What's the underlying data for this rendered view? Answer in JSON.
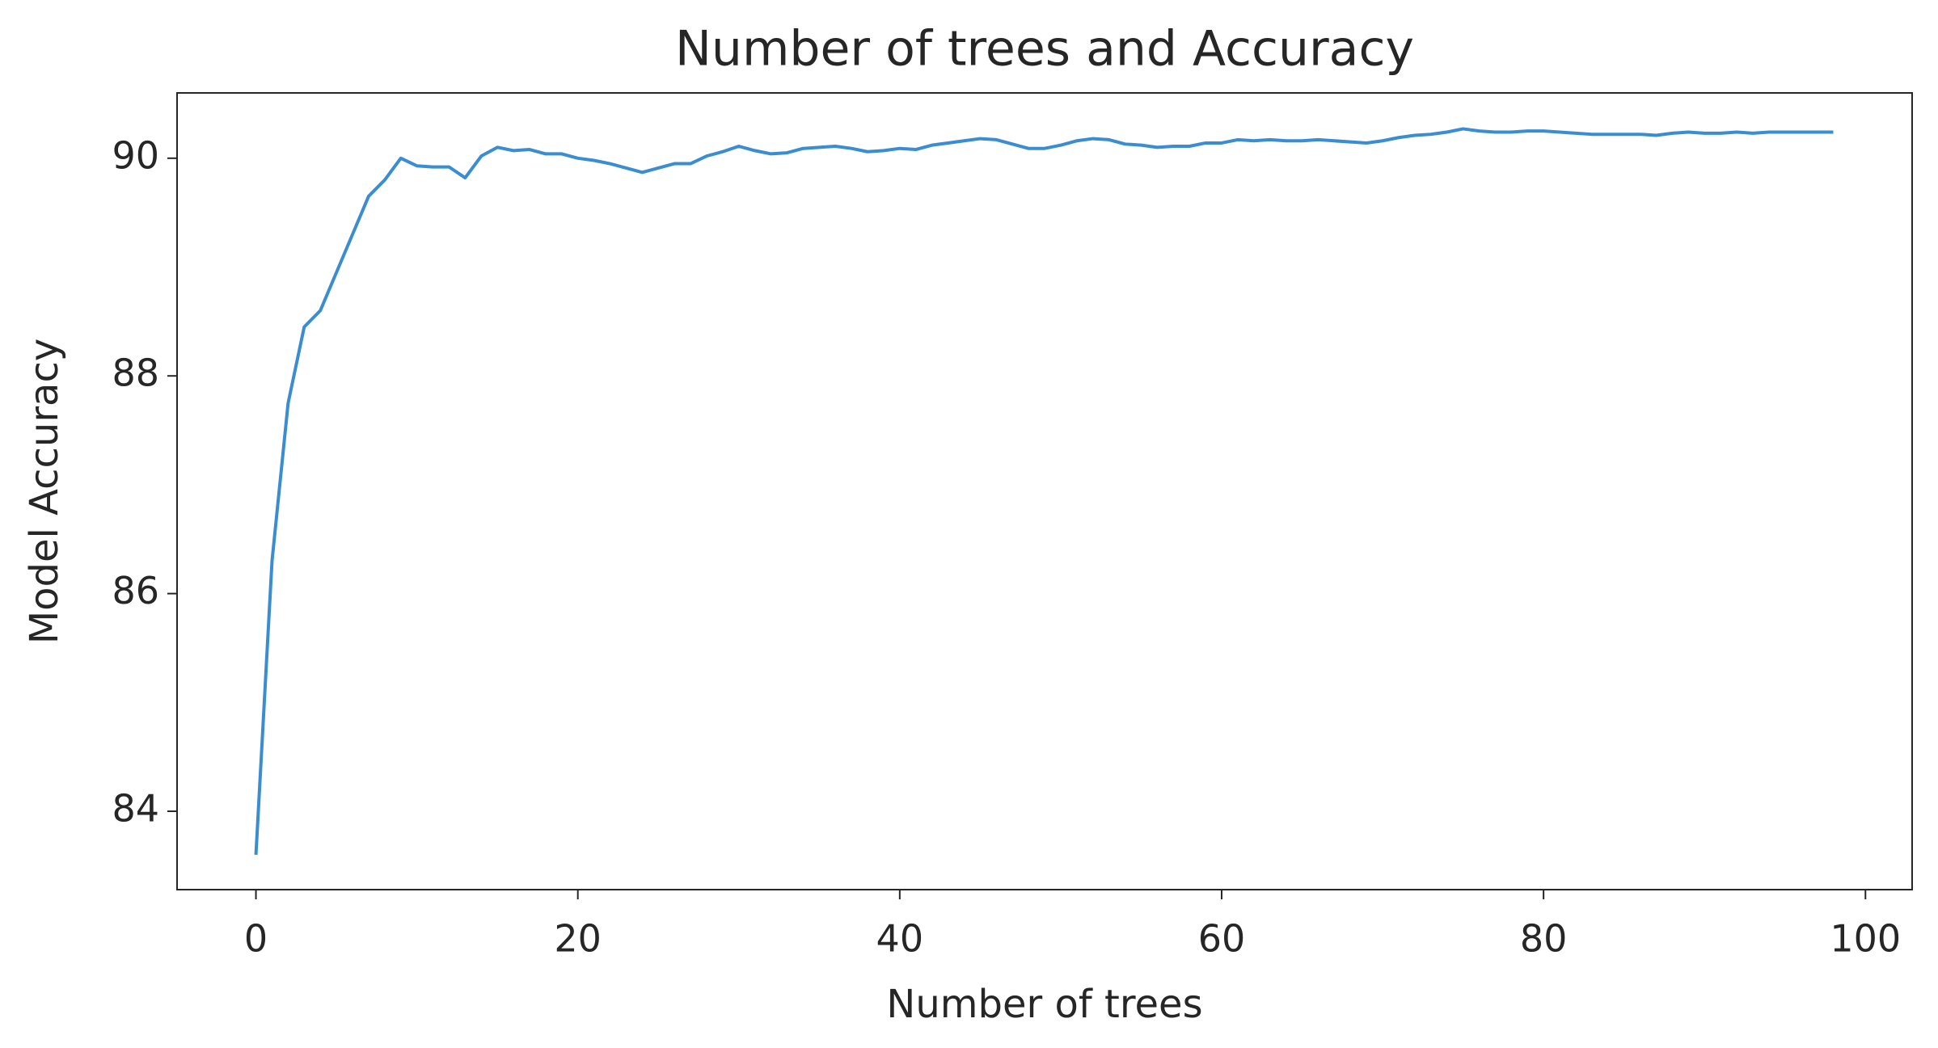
{
  "chart_data": {
    "type": "line",
    "title": "Number of trees and Accuracy",
    "x_label": "Number of trees",
    "y_label": "Model Accuracy",
    "x": [
      0,
      1,
      2,
      3,
      4,
      5,
      6,
      7,
      8,
      9,
      10,
      11,
      12,
      13,
      14,
      15,
      16,
      17,
      18,
      19,
      20,
      21,
      22,
      23,
      24,
      25,
      26,
      27,
      28,
      29,
      30,
      31,
      32,
      33,
      34,
      35,
      36,
      37,
      38,
      39,
      40,
      41,
      42,
      43,
      44,
      45,
      46,
      47,
      48,
      49,
      50,
      51,
      52,
      53,
      54,
      55,
      56,
      57,
      58,
      59,
      60,
      61,
      62,
      63,
      64,
      65,
      66,
      67,
      68,
      69,
      70,
      71,
      72,
      73,
      74,
      75,
      76,
      77,
      78,
      79,
      80,
      81,
      82,
      83,
      84,
      85,
      86,
      87,
      88,
      89,
      90,
      91,
      92,
      93,
      94,
      95,
      96,
      97,
      98
    ],
    "values": [
      83.6,
      86.3,
      87.75,
      88.45,
      88.6,
      88.95,
      89.3,
      89.65,
      89.8,
      90.0,
      89.93,
      89.92,
      89.92,
      89.82,
      90.02,
      90.1,
      90.07,
      90.08,
      90.04,
      90.04,
      90.0,
      89.98,
      89.95,
      89.91,
      89.87,
      89.91,
      89.95,
      89.95,
      90.02,
      90.06,
      90.11,
      90.07,
      90.04,
      90.05,
      90.09,
      90.1,
      90.11,
      90.09,
      90.06,
      90.07,
      90.09,
      90.08,
      90.12,
      90.14,
      90.16,
      90.18,
      90.17,
      90.13,
      90.09,
      90.09,
      90.12,
      90.16,
      90.18,
      90.17,
      90.13,
      90.12,
      90.1,
      90.11,
      90.11,
      90.14,
      90.14,
      90.17,
      90.16,
      90.17,
      90.16,
      90.16,
      90.17,
      90.16,
      90.15,
      90.14,
      90.16,
      90.19,
      90.21,
      90.22,
      90.24,
      90.27,
      90.25,
      90.24,
      90.24,
      90.25,
      90.25,
      90.24,
      90.23,
      90.22,
      90.22,
      90.22,
      90.22,
      90.21,
      90.23,
      90.24,
      90.23,
      90.23,
      90.24,
      90.23,
      90.24,
      90.24,
      90.24,
      90.24,
      90.24
    ],
    "color": "#3a8dd0",
    "xlim": [
      -4.9,
      102.9
    ],
    "ylim": [
      83.28,
      90.6
    ],
    "xticks": [
      0,
      20,
      40,
      60,
      80,
      100
    ],
    "yticks": [
      84,
      86,
      88,
      90
    ],
    "grid": false
  }
}
